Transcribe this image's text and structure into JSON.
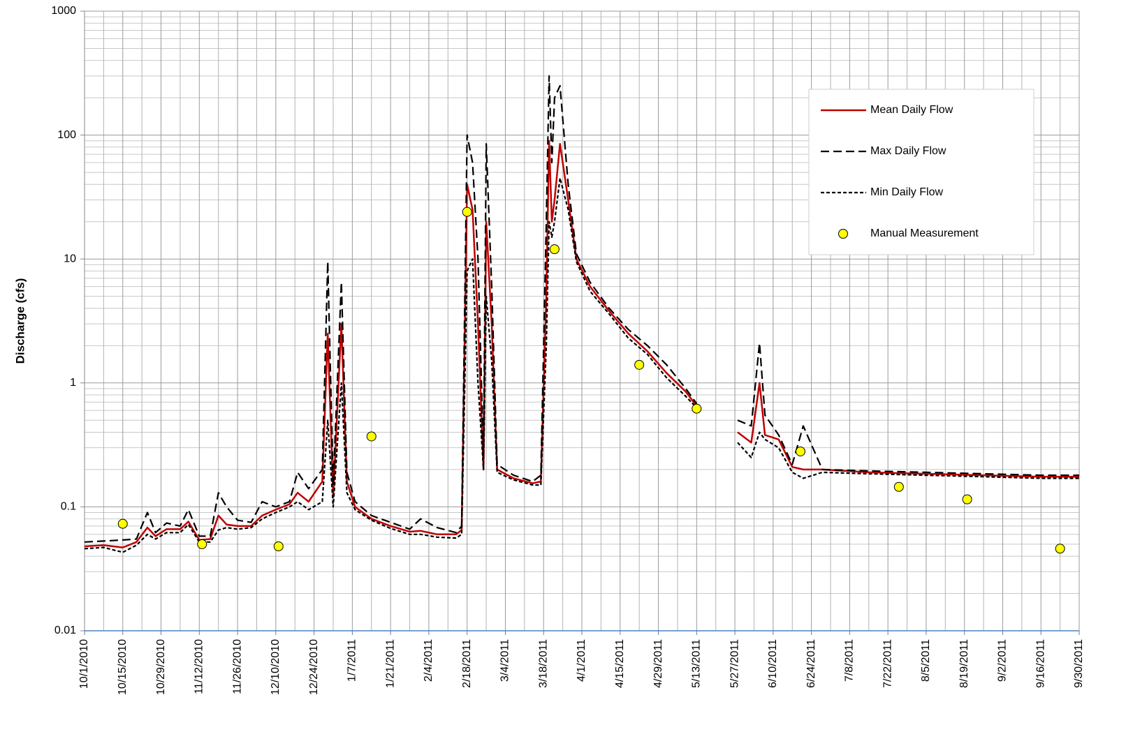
{
  "chart_data": {
    "type": "line",
    "y_label": "Discharge (cfs)",
    "log_scale": true,
    "grid": true,
    "legend": "upper right",
    "xlim": [
      "10/1/2010",
      "9/30/2011"
    ],
    "xticks": [
      "10/1/2010",
      "10/15/2010",
      "10/29/2010",
      "11/12/2010",
      "11/26/2010",
      "12/10/2010",
      "12/24/2010",
      "1/7/2011",
      "1/21/2011",
      "2/4/2011",
      "2/18/2011",
      "3/4/2011",
      "3/18/2011",
      "4/1/2011",
      "4/15/2011",
      "4/29/2011",
      "5/13/2011",
      "5/27/2011",
      "6/10/2011",
      "6/24/2011",
      "7/8/2011",
      "7/22/2011",
      "8/5/2011",
      "8/19/2011",
      "9/2/2011",
      "9/16/2011",
      "9/30/2011"
    ],
    "ylim": [
      0.01,
      1000
    ],
    "yticks": [
      0.01,
      0.1,
      1,
      10,
      100,
      1000
    ],
    "x": [
      "10/1/2010",
      "10/8/2010",
      "10/15/2010",
      "10/20/2010",
      "10/24/2010",
      "10/27/2010",
      "10/31/2010",
      "11/5/2010",
      "11/8/2010",
      "11/12/2010",
      "11/16/2010",
      "11/19/2010",
      "11/22/2010",
      "11/26/2010",
      "12/1/2010",
      "12/5/2010",
      "12/10/2010",
      "12/15/2010",
      "12/18/2010",
      "12/22/2010",
      "12/27/2010",
      "12/29/2010",
      "12/31/2010",
      "1/3/2011",
      "1/5/2011",
      "1/8/2011",
      "1/14/2011",
      "1/21/2011",
      "1/28/2011",
      "2/1/2011",
      "2/7/2011",
      "2/14/2011",
      "2/16/2011",
      "2/18/2011",
      "2/20/2011",
      "2/22/2011",
      "2/24/2011",
      "2/25/2011",
      "2/27/2011",
      "3/1/2011",
      "3/7/2011",
      "3/14/2011",
      "3/17/2011",
      "3/19/2011",
      "3/20/2011",
      "3/21/2011",
      "3/22/2011",
      "3/24/2011",
      "3/27/2011",
      "3/30/2011",
      "4/4/2011",
      "4/11/2011",
      "4/18/2011",
      "4/25/2011",
      "5/2/2011",
      "5/9/2011",
      "5/13/2011",
      "5/20/2011",
      "5/28/2011",
      "6/2/2011",
      "6/5/2011",
      "6/7/2011",
      "6/12/2011",
      "6/17/2011",
      "6/21/2011",
      "6/28/2011",
      "7/15/2011",
      "8/5/2011",
      "8/26/2011",
      "9/16/2011",
      "9/30/2011"
    ],
    "series": [
      {
        "name": "Mean Daily Flow",
        "color": "#c00000",
        "style": "solid",
        "values": [
          0.048,
          0.049,
          0.047,
          0.052,
          0.068,
          0.058,
          0.066,
          0.066,
          0.076,
          0.054,
          0.055,
          0.085,
          0.072,
          0.07,
          0.07,
          0.085,
          0.095,
          0.105,
          0.13,
          0.11,
          0.16,
          2.5,
          0.12,
          3.0,
          0.16,
          0.1,
          0.08,
          0.07,
          0.063,
          0.064,
          0.06,
          0.06,
          0.065,
          40,
          25,
          3,
          0.2,
          20,
          3,
          0.2,
          0.17,
          0.155,
          0.16,
          5,
          90,
          20,
          30,
          85,
          30,
          10,
          6,
          3.8,
          2.5,
          1.8,
          1.2,
          0.85,
          0.65,
          null,
          0.4,
          0.33,
          1.0,
          0.38,
          0.35,
          0.21,
          0.2,
          0.2,
          0.19,
          0.185,
          0.18,
          0.175,
          0.175
        ]
      },
      {
        "name": "Max Daily Flow",
        "color": "#000000",
        "style": "dashed",
        "values": [
          0.052,
          0.053,
          0.054,
          0.055,
          0.09,
          0.062,
          0.074,
          0.07,
          0.095,
          0.058,
          0.058,
          0.13,
          0.1,
          0.078,
          0.075,
          0.11,
          0.1,
          0.11,
          0.19,
          0.14,
          0.2,
          9.5,
          0.15,
          6.5,
          0.19,
          0.11,
          0.085,
          0.075,
          0.066,
          0.08,
          0.068,
          0.062,
          0.07,
          100,
          60,
          10,
          0.25,
          85,
          6,
          0.22,
          0.18,
          0.16,
          0.18,
          20,
          300,
          60,
          200,
          250,
          40,
          11,
          6.5,
          4,
          2.7,
          2,
          1.4,
          0.9,
          0.68,
          null,
          0.5,
          0.45,
          2.1,
          0.55,
          0.38,
          0.22,
          0.45,
          0.2,
          0.195,
          0.19,
          0.185,
          0.18,
          0.18
        ]
      },
      {
        "name": "Min Daily Flow",
        "color": "#000000",
        "style": "dotted",
        "values": [
          0.046,
          0.047,
          0.043,
          0.049,
          0.06,
          0.055,
          0.062,
          0.062,
          0.072,
          0.052,
          0.052,
          0.065,
          0.068,
          0.066,
          0.068,
          0.08,
          0.09,
          0.1,
          0.11,
          0.095,
          0.11,
          0.5,
          0.1,
          1.0,
          0.13,
          0.095,
          0.078,
          0.067,
          0.06,
          0.06,
          0.057,
          0.056,
          0.06,
          8,
          10,
          1,
          0.2,
          5,
          1.5,
          0.19,
          0.165,
          0.15,
          0.15,
          2,
          20,
          15,
          20,
          45,
          25,
          9.5,
          5.5,
          3.6,
          2.3,
          1.7,
          1.1,
          0.78,
          0.63,
          null,
          0.33,
          0.25,
          0.4,
          0.35,
          0.3,
          0.19,
          0.17,
          0.19,
          0.185,
          0.18,
          0.175,
          0.17,
          0.17
        ]
      }
    ],
    "measurements": {
      "name": "Manual Measurement",
      "color": "#ffff00",
      "x": [
        "10/15/2010",
        "11/13/2010",
        "12/11/2010",
        "1/14/2011",
        "2/18/2011",
        "3/22/2011",
        "4/22/2011",
        "5/13/2011",
        "6/20/2011",
        "7/26/2011",
        "8/20/2011",
        "9/23/2011"
      ],
      "values": [
        0.073,
        0.05,
        0.048,
        0.37,
        24,
        12,
        1.4,
        0.62,
        0.28,
        0.145,
        0.115,
        0.046
      ]
    }
  }
}
